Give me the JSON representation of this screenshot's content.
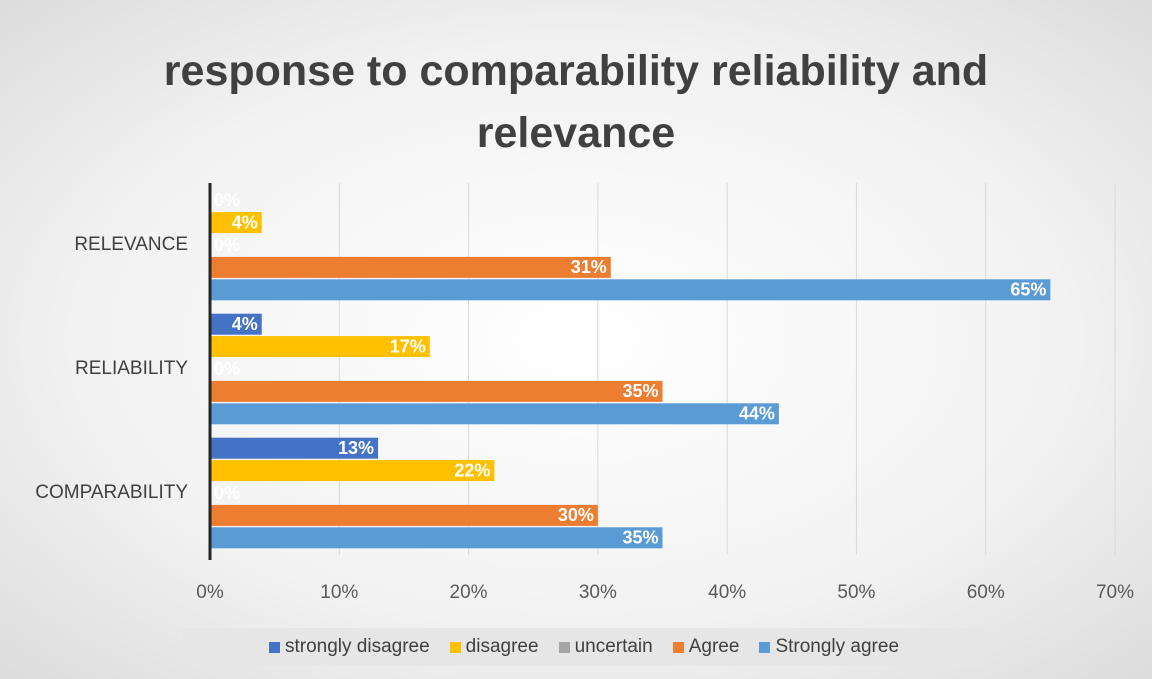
{
  "chart_data": {
    "type": "bar",
    "orientation": "horizontal",
    "title": "response to comparability reliability and relevance",
    "categories": [
      "COMPARABILITY",
      "RELIABILITY",
      "RELEVANCE"
    ],
    "series": [
      {
        "name": "strongly disagree",
        "color": "#4472c4",
        "values": [
          13,
          4,
          0
        ],
        "value_labels": [
          "13%",
          "4%",
          "0%"
        ]
      },
      {
        "name": "disagree",
        "color": "#ffc000",
        "values": [
          22,
          17,
          4
        ],
        "value_labels": [
          "22%",
          "17%",
          "4%"
        ]
      },
      {
        "name": "uncertain",
        "color": "#a5a5a5",
        "values": [
          0,
          0,
          0
        ],
        "value_labels": [
          "0%",
          "0%",
          "0%"
        ]
      },
      {
        "name": "Agree",
        "color": "#ed7d31",
        "values": [
          30,
          35,
          31
        ],
        "value_labels": [
          "30%",
          "35%",
          "31%"
        ]
      },
      {
        "name": "Strongly agree",
        "color": "#5b9bd5",
        "values": [
          35,
          44,
          65
        ],
        "value_labels": [
          "35%",
          "44%",
          "65%"
        ]
      }
    ],
    "xlim": [
      0,
      70
    ],
    "xticks": [
      {
        "value": 0,
        "label": "0%"
      },
      {
        "value": 10,
        "label": "10%"
      },
      {
        "value": 20,
        "label": "20%"
      },
      {
        "value": 30,
        "label": "30%"
      },
      {
        "value": 40,
        "label": "40%"
      },
      {
        "value": 50,
        "label": "50%"
      },
      {
        "value": 60,
        "label": "60%"
      },
      {
        "value": 70,
        "label": "70%"
      }
    ],
    "grid": true,
    "legend": "bottom"
  }
}
